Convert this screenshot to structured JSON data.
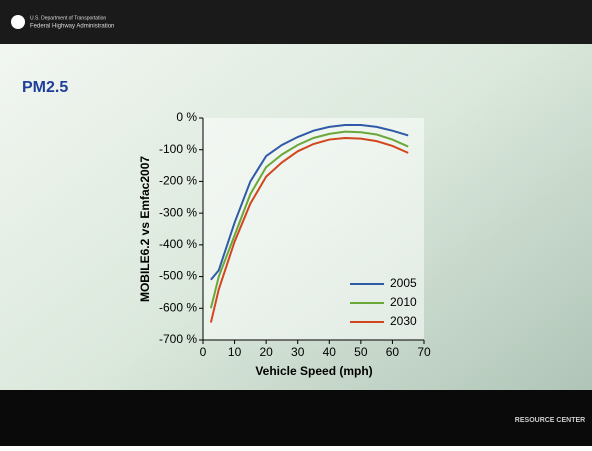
{
  "header": {
    "line1": "U.S. Department of Transportation",
    "line2": "Federal Highway Administration"
  },
  "footer": {
    "logo": "RESOURCE CENTER"
  },
  "chart_data": {
    "type": "line",
    "title": "PM2.5",
    "x_label": "Vehicle Speed (mph)",
    "y_label": "MOBILE6.2 vs Emfac2007",
    "x": [
      2.5,
      5,
      10,
      15,
      20,
      25,
      30,
      35,
      40,
      45,
      50,
      55,
      60,
      65
    ],
    "series": [
      {
        "name": "2005",
        "color": "#2f5aa8",
        "values": [
          -510,
          -480,
          -330,
          -200,
          -120,
          -85,
          -60,
          -40,
          -28,
          -22,
          -22,
          -28,
          -40,
          -55
        ]
      },
      {
        "name": "2010",
        "color": "#6aa83a",
        "values": [
          -600,
          -500,
          -370,
          -240,
          -155,
          -115,
          -85,
          -63,
          -50,
          -43,
          -45,
          -52,
          -68,
          -90
        ]
      },
      {
        "name": "2030",
        "color": "#d2461e",
        "values": [
          -645,
          -540,
          -390,
          -270,
          -185,
          -140,
          -105,
          -82,
          -68,
          -63,
          -65,
          -73,
          -88,
          -110
        ]
      }
    ],
    "xlim": [
      0,
      70
    ],
    "xticks": [
      0,
      10,
      20,
      30,
      40,
      50,
      60,
      70
    ],
    "ylim": [
      -700,
      0
    ],
    "yticks": [
      {
        "value": 0,
        "label": "0 %"
      },
      {
        "value": -100,
        "label": "-100 %"
      },
      {
        "value": -200,
        "label": "-200 %"
      },
      {
        "value": -300,
        "label": "-300 %"
      },
      {
        "value": -400,
        "label": "-400 %"
      },
      {
        "value": -500,
        "label": "-500 %"
      },
      {
        "value": -600,
        "label": "-600 %"
      },
      {
        "value": -700,
        "label": "-700 %"
      }
    ],
    "legend": "lower-right"
  }
}
